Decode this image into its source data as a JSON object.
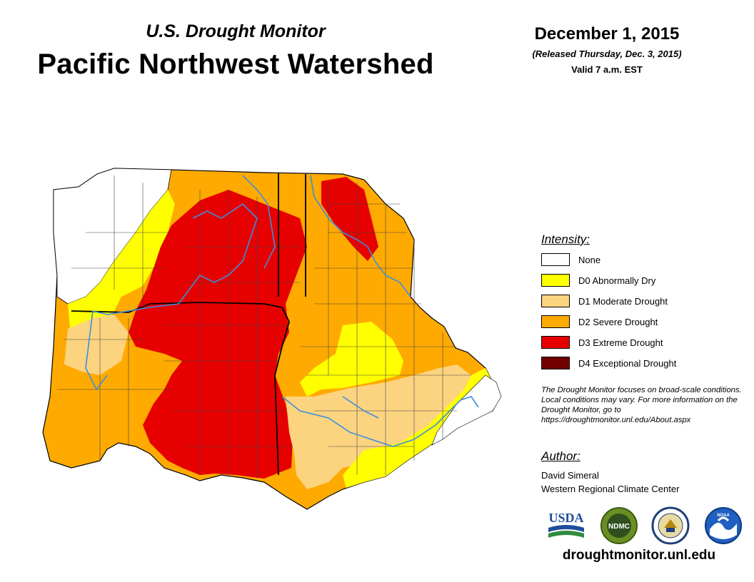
{
  "header": {
    "subtitle": "U.S. Drought Monitor",
    "title": "Pacific Northwest Watershed",
    "date": "December 1, 2015",
    "released": "(Released Thursday, Dec. 3, 2015)",
    "valid": "Valid 7 a.m. EST"
  },
  "legend": {
    "title": "Intensity:",
    "items": [
      {
        "label": "None",
        "color": "#ffffff"
      },
      {
        "label": "D0 Abnormally Dry",
        "color": "#ffff00"
      },
      {
        "label": "D1 Moderate Drought",
        "color": "#fcd37f"
      },
      {
        "label": "D2 Severe Drought",
        "color": "#ffaa00"
      },
      {
        "label": "D3 Extreme Drought",
        "color": "#e60000"
      },
      {
        "label": "D4 Exceptional Drought",
        "color": "#730000"
      }
    ]
  },
  "note": "The Drought Monitor focuses on broad-scale conditions. Local conditions may vary. For more information on the Drought Monitor, go to https://droughtmonitor.unl.edu/About.aspx",
  "author": {
    "title": "Author:",
    "name": "David Simeral",
    "org": "Western Regional Climate Center"
  },
  "logos": {
    "usda": "USDA",
    "ndmc": "NDMC",
    "noaa": "NOAA"
  },
  "map_colors": {
    "river": "#3c8fe0",
    "boundary": "#000000",
    "county": "#444444"
  },
  "footer": {
    "url": "droughtmonitor.unl.edu"
  }
}
